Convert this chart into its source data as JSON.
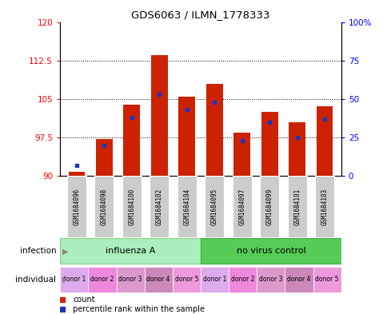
{
  "title": "GDS6063 / ILMN_1778333",
  "samples": [
    "GSM1684096",
    "GSM1684098",
    "GSM1684100",
    "GSM1684102",
    "GSM1684104",
    "GSM1684095",
    "GSM1684097",
    "GSM1684099",
    "GSM1684101",
    "GSM1684103"
  ],
  "red_values": [
    90.8,
    97.2,
    103.8,
    113.5,
    105.5,
    108.0,
    98.5,
    102.5,
    100.5,
    103.5
  ],
  "blue_values": [
    7,
    20,
    38,
    53,
    43,
    48,
    23,
    35,
    25,
    37
  ],
  "ylim_left": [
    90,
    120
  ],
  "ylim_right": [
    0,
    100
  ],
  "yticks_left": [
    90,
    97.5,
    105,
    112.5,
    120
  ],
  "yticks_right": [
    0,
    25,
    50,
    75,
    100
  ],
  "bar_color": "#CC2200",
  "blue_color": "#2233BB",
  "sample_bg": "#CCCCCC",
  "infection_colors": [
    "#AAEEBB",
    "#55CC55"
  ],
  "infection_labels": [
    "influenza A",
    "no virus control"
  ],
  "individual_labels": [
    "donor 1",
    "donor 2",
    "donor 3",
    "donor 4",
    "donor 5",
    "donor 1",
    "donor 2",
    "donor 3",
    "donor 4",
    "donor 5"
  ],
  "individual_colors": [
    "#DDAAEE",
    "#EE88DD",
    "#DD88CC",
    "#CC77BB",
    "#EE99DD",
    "#DDAAEE",
    "#EE88DD",
    "#DD88CC",
    "#CC77BB",
    "#EE99DD"
  ],
  "ybase": 90,
  "bar_width": 0.6
}
